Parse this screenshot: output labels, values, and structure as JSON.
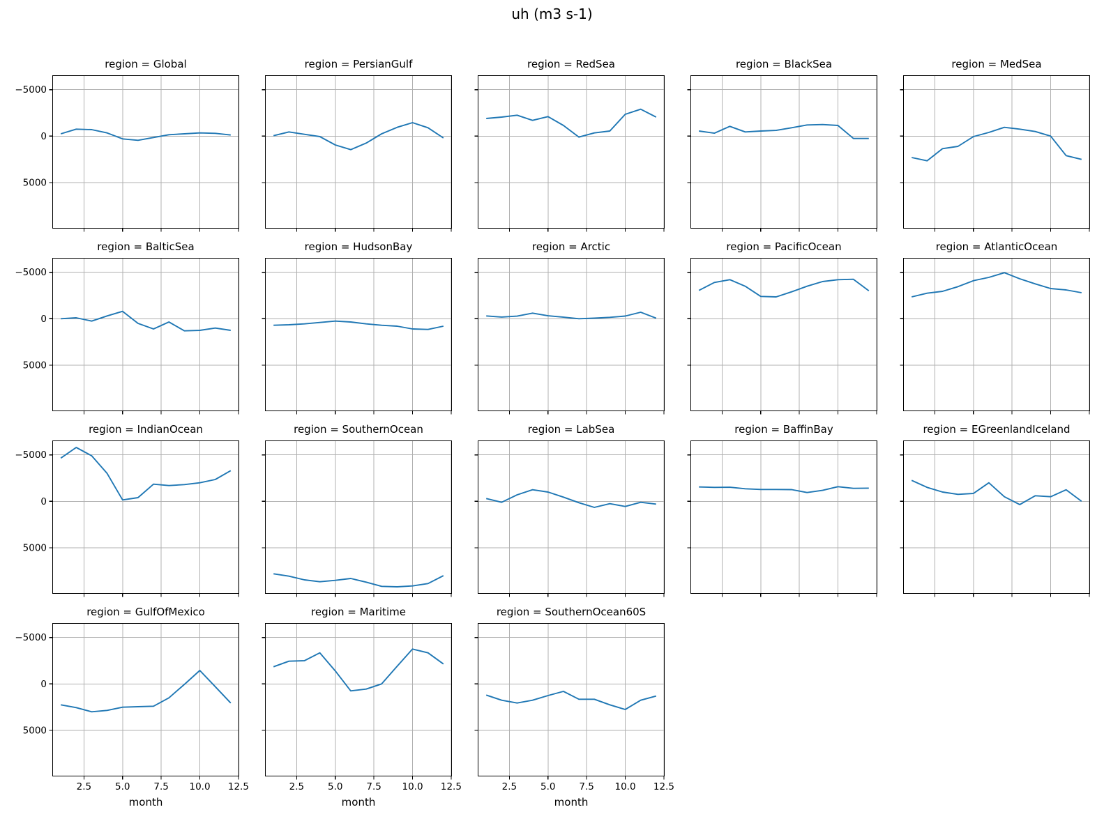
{
  "chart_data": {
    "type": "line",
    "title": "uh (m3 s-1)",
    "xlabel": "month",
    "facet_by": "region",
    "grid": true,
    "legend": "none",
    "line_color": "#1f77b4",
    "grid_color": "#b0b0b0",
    "frame_color": "#000000",
    "x": [
      1,
      2,
      3,
      4,
      5,
      6,
      7,
      8,
      9,
      10,
      11,
      12
    ],
    "xlim": [
      0.45,
      12.55
    ],
    "ylim": [
      -6550,
      9950
    ],
    "y_axis_inverted": true,
    "x_ticks": [
      2.5,
      5.0,
      7.5,
      10.0,
      12.5
    ],
    "x_tick_labels": [
      "2.5",
      "5.0",
      "7.5",
      "10.0",
      "12.5"
    ],
    "y_ticks": [
      -5000,
      0,
      5000
    ],
    "y_tick_labels": [
      "−5000",
      "0",
      "5000"
    ],
    "facets": [
      {
        "region": "Global",
        "label": "region = Global",
        "values": [
          -250,
          -750,
          -700,
          -350,
          300,
          450,
          150,
          -150,
          -250,
          -350,
          -300,
          -120
        ]
      },
      {
        "region": "PersianGulf",
        "label": "region = PersianGulf",
        "values": [
          -50,
          -450,
          -200,
          50,
          950,
          1450,
          750,
          -250,
          -950,
          -1450,
          -900,
          200
        ]
      },
      {
        "region": "RedSea",
        "label": "region = RedSea",
        "values": [
          -1900,
          -2050,
          -2250,
          -1700,
          -2100,
          -1150,
          100,
          -350,
          -550,
          -2350,
          -2900,
          -2050
        ]
      },
      {
        "region": "BlackSea",
        "label": "region = BlackSea",
        "values": [
          -550,
          -320,
          -1050,
          -450,
          -550,
          -620,
          -900,
          -1200,
          -1250,
          -1150,
          250,
          250
        ]
      },
      {
        "region": "MedSea",
        "label": "region = MedSea",
        "values": [
          2300,
          2650,
          1350,
          1100,
          50,
          -400,
          -950,
          -750,
          -500,
          0,
          2100,
          2500
        ]
      },
      {
        "region": "BalticSea",
        "label": "region = BalticSea",
        "values": [
          0,
          -100,
          250,
          -300,
          -800,
          500,
          1100,
          350,
          1300,
          1250,
          1000,
          1250
        ]
      },
      {
        "region": "HudsonBay",
        "label": "region = HudsonBay",
        "values": [
          700,
          650,
          550,
          400,
          250,
          350,
          550,
          700,
          800,
          1100,
          1150,
          800
        ]
      },
      {
        "region": "Arctic",
        "label": "region = Arctic",
        "values": [
          -300,
          -180,
          -280,
          -600,
          -320,
          -170,
          0,
          -60,
          -150,
          -290,
          -700,
          -60
        ]
      },
      {
        "region": "PacificOcean",
        "label": "region = PacificOcean",
        "values": [
          -3050,
          -3900,
          -4200,
          -3500,
          -2400,
          -2350,
          -2900,
          -3500,
          -4000,
          -4200,
          -4250,
          -3000
        ]
      },
      {
        "region": "AtlanticOcean",
        "label": "region = AtlanticOcean",
        "values": [
          -2350,
          -2750,
          -2950,
          -3450,
          -4100,
          -4450,
          -4950,
          -4300,
          -3750,
          -3250,
          -3100,
          -2800
        ]
      },
      {
        "region": "IndianOcean",
        "label": "region = IndianOcean",
        "values": [
          -4650,
          -5800,
          -4900,
          -3000,
          -150,
          -400,
          -1850,
          -1700,
          -1800,
          -2000,
          -2350,
          -3300
        ]
      },
      {
        "region": "SouthernOcean",
        "label": "region = SouthernOcean",
        "values": [
          7800,
          8050,
          8450,
          8650,
          8500,
          8300,
          8700,
          9150,
          9200,
          9100,
          8850,
          8000
        ]
      },
      {
        "region": "LabSea",
        "label": "region = LabSea",
        "values": [
          -300,
          100,
          -700,
          -1250,
          -1000,
          -450,
          150,
          650,
          250,
          550,
          100,
          300
        ]
      },
      {
        "region": "BaffinBay",
        "label": "region = BaffinBay",
        "values": [
          -1550,
          -1500,
          -1520,
          -1350,
          -1280,
          -1280,
          -1260,
          -950,
          -1180,
          -1575,
          -1400,
          -1420
        ]
      },
      {
        "region": "EGreenlandIceland",
        "label": "region = EGreenlandIceland",
        "values": [
          -2250,
          -1500,
          -1000,
          -750,
          -850,
          -2000,
          -500,
          350,
          -600,
          -500,
          -1250,
          0
        ]
      },
      {
        "region": "GulfOfMexico",
        "label": "region = GulfOfMexico",
        "values": [
          2250,
          2550,
          3000,
          2850,
          2500,
          2450,
          2400,
          1500,
          50,
          -1450,
          300,
          2050
        ]
      },
      {
        "region": "Maritime",
        "label": "region = Maritime",
        "values": [
          -1850,
          -2450,
          -2500,
          -3350,
          -1400,
          750,
          550,
          0,
          -1900,
          -3750,
          -3350,
          -2150
        ]
      },
      {
        "region": "SouthernOcean60S",
        "label": "region = SouthernOcean60S",
        "values": [
          1200,
          1750,
          2050,
          1750,
          1250,
          800,
          1650,
          1650,
          2250,
          2750,
          1750,
          1300
        ]
      }
    ]
  }
}
